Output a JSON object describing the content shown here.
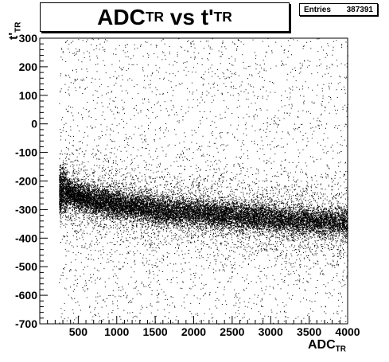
{
  "title": {
    "main": "ADC",
    "main_sub": "TR",
    "mid": " vs t'",
    "end_sub": "TR"
  },
  "stats": {
    "label": "Entries",
    "value": "387391"
  },
  "axes": {
    "xlabel_main": "ADC",
    "xlabel_sub": "TR",
    "ylabel_main": "t'",
    "ylabel_sub": "TR"
  },
  "chart_data": {
    "type": "scatter",
    "title": "ADC_TR vs t'_TR",
    "xlabel": "ADC_TR",
    "ylabel": "t'_TR",
    "xlim": [
      0,
      4000
    ],
    "ylim": [
      -700,
      300
    ],
    "x_ticks": [
      500,
      1000,
      1500,
      2000,
      2500,
      3000,
      3500,
      4000
    ],
    "y_ticks": [
      -700,
      -600,
      -500,
      -400,
      -300,
      -200,
      -100,
      0,
      100,
      200,
      300
    ],
    "grid": false,
    "entries": 387391,
    "band": {
      "description": "dense band of points",
      "x_start": 250,
      "x_end": 4000,
      "centerline": [
        {
          "x": 300,
          "y": -230
        },
        {
          "x": 500,
          "y": -255
        },
        {
          "x": 1000,
          "y": -280
        },
        {
          "x": 1500,
          "y": -300
        },
        {
          "x": 2000,
          "y": -310
        },
        {
          "x": 2500,
          "y": -320
        },
        {
          "x": 3000,
          "y": -330
        },
        {
          "x": 3500,
          "y": -340
        },
        {
          "x": 4000,
          "y": -345
        }
      ],
      "half_width": 35
    },
    "background_x_min": 250,
    "marker_color": "#000000"
  }
}
